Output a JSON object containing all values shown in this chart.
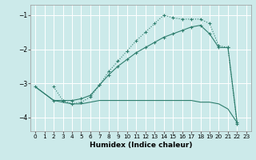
{
  "xlabel": "Humidex (Indice chaleur)",
  "bg_color": "#cceaea",
  "line_color": "#2e7d6d",
  "grid_color": "#ffffff",
  "xlim": [
    -0.5,
    23.5
  ],
  "ylim": [
    -4.4,
    -0.7
  ],
  "yticks": [
    -4,
    -3,
    -2,
    -1
  ],
  "xticks": [
    0,
    1,
    2,
    3,
    4,
    5,
    6,
    7,
    8,
    9,
    10,
    11,
    12,
    13,
    14,
    15,
    16,
    17,
    18,
    19,
    20,
    21,
    22,
    23
  ],
  "line1_x": [
    0,
    2,
    3,
    4,
    5,
    6,
    7,
    8,
    9,
    10,
    11,
    12,
    13,
    14,
    15,
    16,
    17,
    18,
    19,
    20,
    21,
    22
  ],
  "line1_y": [
    -3.1,
    -3.5,
    -3.55,
    -3.6,
    -3.6,
    -3.55,
    -3.5,
    -3.5,
    -3.5,
    -3.5,
    -3.5,
    -3.5,
    -3.5,
    -3.5,
    -3.5,
    -3.5,
    -3.5,
    -3.55,
    -3.55,
    -3.6,
    -3.75,
    -4.15
  ],
  "line2_x": [
    2,
    3,
    4,
    5,
    6,
    7,
    8,
    9,
    10,
    11,
    12,
    13,
    14,
    15,
    16,
    17,
    18,
    19,
    20,
    21,
    22
  ],
  "line2_y": [
    -3.1,
    -3.5,
    -3.6,
    -3.55,
    -3.4,
    -3.05,
    -2.65,
    -2.35,
    -2.05,
    -1.75,
    -1.5,
    -1.25,
    -1.0,
    -1.08,
    -1.12,
    -1.12,
    -1.12,
    -1.25,
    -1.9,
    -1.95,
    -4.2
  ],
  "line3_x": [
    0,
    2,
    3,
    4,
    5,
    6,
    7,
    8,
    9,
    10,
    11,
    12,
    13,
    14,
    15,
    16,
    17,
    18,
    19,
    20,
    21,
    22
  ],
  "line3_y": [
    -3.1,
    -3.5,
    -3.5,
    -3.5,
    -3.45,
    -3.35,
    -3.05,
    -2.75,
    -2.5,
    -2.3,
    -2.1,
    -1.95,
    -1.8,
    -1.65,
    -1.55,
    -1.45,
    -1.35,
    -1.3,
    -1.55,
    -1.95,
    -1.95,
    -4.15
  ]
}
